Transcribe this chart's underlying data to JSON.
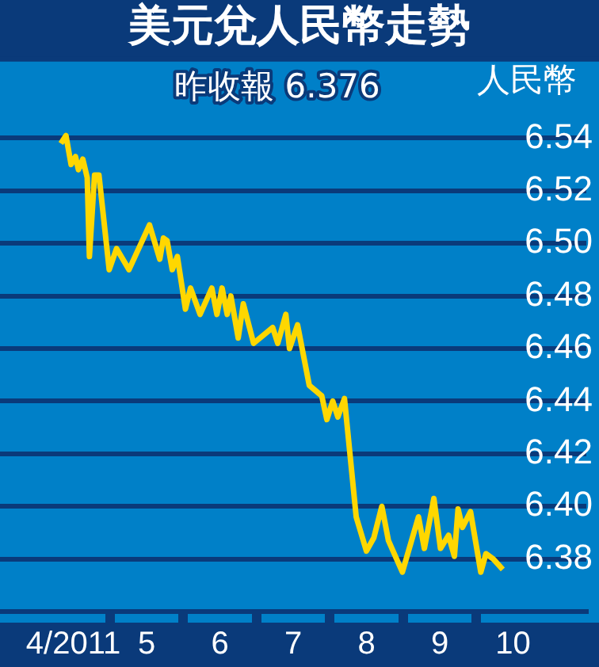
{
  "chart_data": {
    "type": "line",
    "title": "美元兌人民幣走勢",
    "ylabel": "人民幣",
    "annotations": [
      "昨收報 6.376"
    ],
    "series": [
      {
        "color": "#ffd700",
        "x": [
          4.33,
          4.4,
          4.47,
          4.53,
          4.57,
          4.63,
          4.69,
          4.72,
          4.79,
          4.85,
          4.99,
          5.09,
          5.26,
          5.54,
          5.68,
          5.73,
          5.78,
          5.85,
          5.92,
          6.03,
          6.1,
          6.23,
          6.39,
          6.46,
          6.53,
          6.6,
          6.65,
          6.75,
          6.82,
          6.96,
          7.22,
          7.29,
          7.4,
          7.45,
          7.56,
          7.72,
          7.89,
          7.96,
          8.04,
          8.11,
          8.2,
          8.36,
          8.5,
          8.6,
          8.71,
          8.8,
          8.99,
          9.21,
          9.29,
          9.42,
          9.51,
          9.62,
          9.7,
          9.75,
          9.81,
          9.92,
          10.06,
          10.13,
          10.23,
          10.36
        ],
        "values": [
          6.538,
          6.541,
          6.53,
          6.533,
          6.528,
          6.532,
          6.525,
          6.495,
          6.526,
          6.526,
          6.49,
          6.498,
          6.49,
          6.507,
          6.494,
          6.502,
          6.501,
          6.49,
          6.495,
          6.475,
          6.483,
          6.473,
          6.483,
          6.473,
          6.483,
          6.473,
          6.48,
          6.464,
          6.477,
          6.462,
          6.468,
          6.462,
          6.473,
          6.46,
          6.469,
          6.446,
          6.442,
          6.433,
          6.44,
          6.434,
          6.441,
          6.396,
          6.383,
          6.388,
          6.4,
          6.387,
          6.375,
          6.396,
          6.384,
          6.403,
          6.384,
          6.389,
          6.381,
          6.399,
          6.392,
          6.398,
          6.375,
          6.382,
          6.38,
          6.376
        ]
      }
    ],
    "xlim": [
      3.5,
      11.5
    ],
    "xticks": [
      {
        "value": 4.5,
        "label": "4/2011"
      },
      {
        "value": 5,
        "label": null
      },
      {
        "value": 5.5,
        "label": "5"
      },
      {
        "value": 6,
        "label": null
      },
      {
        "value": 6.5,
        "label": "6"
      },
      {
        "value": 7,
        "label": null
      },
      {
        "value": 7.5,
        "label": "7"
      },
      {
        "value": 8,
        "label": null
      },
      {
        "value": 8.5,
        "label": "8"
      },
      {
        "value": 9,
        "label": null
      },
      {
        "value": 9.5,
        "label": "9"
      },
      {
        "value": 10,
        "label": null
      },
      {
        "value": 10.5,
        "label": "10"
      }
    ],
    "ylim": [
      6.36,
      6.57
    ],
    "yticks": [
      6.38,
      {
        "value": 6.4,
        "label": "6.40"
      },
      6.42,
      6.44,
      6.46,
      6.48,
      {
        "value": 6.5,
        "label": "6.50"
      },
      6.52,
      6.54
    ],
    "grid": "y",
    "marker": "none",
    "line_style": "solid"
  }
}
